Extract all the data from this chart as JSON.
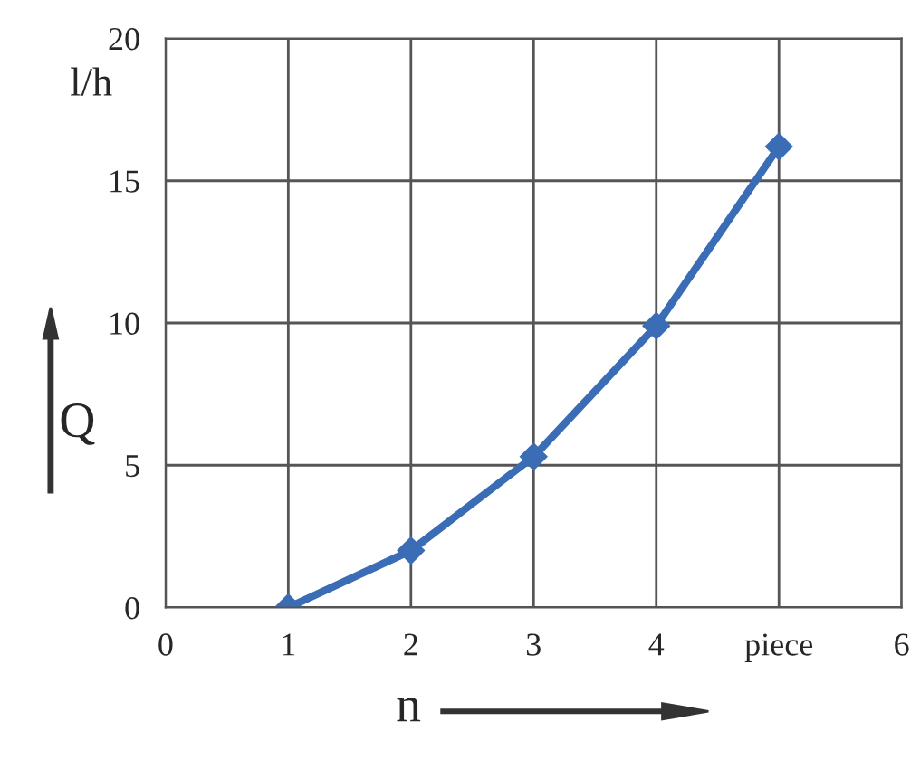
{
  "chart_data": {
    "type": "line",
    "xlabel": "n",
    "ylabel": "Q",
    "annotations": [
      "l/h"
    ],
    "x": [
      1,
      2,
      3,
      4,
      5
    ],
    "series": [
      {
        "color": "#3a6db5",
        "values": [
          0,
          2.0,
          5.3,
          9.9,
          16.2
        ]
      }
    ],
    "xlim": [
      0,
      6
    ],
    "ylim": [
      0,
      20
    ],
    "xticks": [
      0,
      1,
      2,
      3,
      4,
      {
        "value": 5,
        "label": "piece"
      },
      6
    ],
    "yticks": [
      0,
      5,
      10,
      15,
      20
    ],
    "grid": true,
    "legend": false,
    "marker": "diamond",
    "line_style": "solid"
  }
}
